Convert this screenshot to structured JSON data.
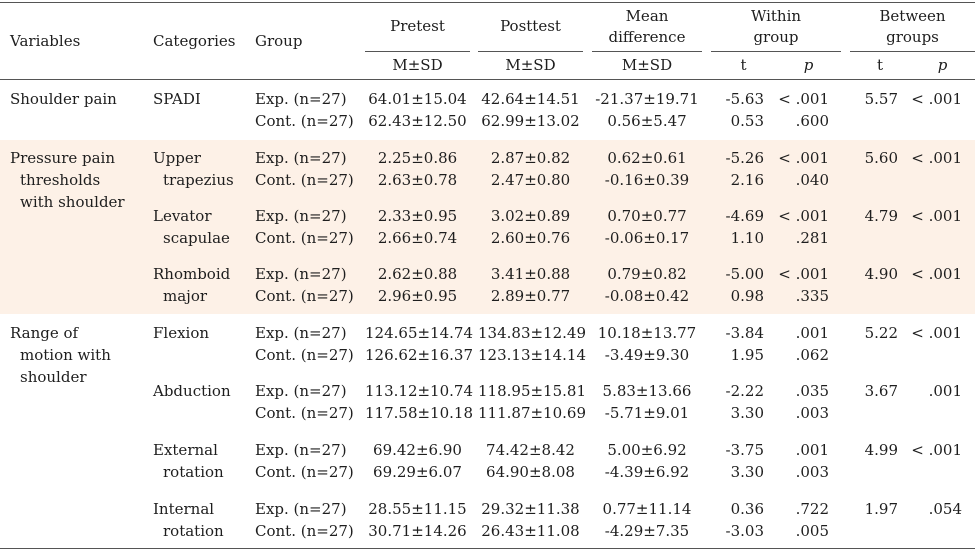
{
  "header": {
    "variables": "Variables",
    "categories": "Categories",
    "group": "Group",
    "pretest": "Pretest",
    "posttest": "Posttest",
    "mean_diff_1": "Mean",
    "mean_diff_2": "difference",
    "within_1": "Within",
    "within_2": "group",
    "between_1": "Between",
    "between_2": "groups",
    "msd": "M±SD",
    "t": "t",
    "p": "p"
  },
  "rows": [
    {
      "variable": [
        "Shoulder pain"
      ],
      "category": [
        "SPADI"
      ],
      "group": [
        "Exp. (n=27)",
        "Cont. (n=27)"
      ],
      "pretest": [
        "64.01±15.04",
        "62.43±12.50"
      ],
      "posttest": [
        "42.64±14.51",
        "62.99±13.02"
      ],
      "mean_diff": [
        "-21.37±19.71",
        "0.56±5.47"
      ],
      "within_t": [
        "-5.63",
        "0.53"
      ],
      "within_p": [
        "< .001",
        ".600"
      ],
      "between_t": "5.57",
      "between_p": "< .001"
    },
    {
      "variable": [
        "Pressure pain",
        "thresholds",
        "with shoulder"
      ],
      "category": [
        "Upper",
        "trapezius"
      ],
      "group": [
        "Exp. (n=27)",
        "Cont. (n=27)"
      ],
      "pretest": [
        "2.25±0.86",
        "2.63±0.78"
      ],
      "posttest": [
        "2.87±0.82",
        "2.47±0.80"
      ],
      "mean_diff": [
        "0.62±0.61",
        "-0.16±0.39"
      ],
      "within_t": [
        "-5.26",
        "2.16"
      ],
      "within_p": [
        "< .001",
        ".040"
      ],
      "between_t": "5.60",
      "between_p": "< .001"
    },
    {
      "variable": [],
      "category": [
        "Levator",
        "scapulae"
      ],
      "group": [
        "Exp. (n=27)",
        "Cont. (n=27)"
      ],
      "pretest": [
        "2.33±0.95",
        "2.66±0.74"
      ],
      "posttest": [
        "3.02±0.89",
        "2.60±0.76"
      ],
      "mean_diff": [
        "0.70±0.77",
        "-0.06±0.17"
      ],
      "within_t": [
        "-4.69",
        "1.10"
      ],
      "within_p": [
        "< .001",
        ".281"
      ],
      "between_t": "4.79",
      "between_p": "< .001"
    },
    {
      "variable": [],
      "category": [
        "Rhomboid",
        "major"
      ],
      "group": [
        "Exp. (n=27)",
        "Cont. (n=27)"
      ],
      "pretest": [
        "2.62±0.88",
        "2.96±0.95"
      ],
      "posttest": [
        "3.41±0.88",
        "2.89±0.77"
      ],
      "mean_diff": [
        "0.79±0.82",
        "-0.08±0.42"
      ],
      "within_t": [
        "-5.00",
        "0.98"
      ],
      "within_p": [
        "< .001",
        ".335"
      ],
      "between_t": "4.90",
      "between_p": "< .001"
    },
    {
      "variable": [
        "Range of",
        "motion with",
        "shoulder"
      ],
      "category": [
        "Flexion"
      ],
      "group": [
        "Exp. (n=27)",
        "Cont. (n=27)"
      ],
      "pretest": [
        "124.65±14.74",
        "126.62±16.37"
      ],
      "posttest": [
        "134.83±12.49",
        "123.13±14.14"
      ],
      "mean_diff": [
        "10.18±13.77",
        "-3.49±9.30"
      ],
      "within_t": [
        "-3.84",
        "1.95"
      ],
      "within_p": [
        ".001",
        ".062"
      ],
      "between_t": "5.22",
      "between_p": "< .001"
    },
    {
      "variable": [],
      "category": [
        "Abduction"
      ],
      "group": [
        "Exp. (n=27)",
        "Cont. (n=27)"
      ],
      "pretest": [
        "113.12±10.74",
        "117.58±10.18"
      ],
      "posttest": [
        "118.95±15.81",
        "111.87±10.69"
      ],
      "mean_diff": [
        "5.83±13.66",
        "-5.71±9.01"
      ],
      "within_t": [
        "-2.22",
        "3.30"
      ],
      "within_p": [
        ".035",
        ".003"
      ],
      "between_t": "3.67",
      "between_p": ".001"
    },
    {
      "variable": [],
      "category": [
        "External",
        "rotation"
      ],
      "group": [
        "Exp. (n=27)",
        "Cont. (n=27)"
      ],
      "pretest": [
        "69.42±6.90",
        "69.29±6.07"
      ],
      "posttest": [
        "74.42±8.42",
        "64.90±8.08"
      ],
      "mean_diff": [
        "5.00±6.92",
        "-4.39±6.92"
      ],
      "within_t": [
        "-3.75",
        "3.30"
      ],
      "within_p": [
        ".001",
        ".003"
      ],
      "between_t": "4.99",
      "between_p": "< .001"
    },
    {
      "variable": [],
      "category": [
        "Internal",
        "rotation"
      ],
      "group": [
        "Exp. (n=27)",
        "Cont. (n=27)"
      ],
      "pretest": [
        "28.55±11.15",
        "30.71±14.26"
      ],
      "posttest": [
        "29.32±11.38",
        "26.43±11.08"
      ],
      "mean_diff": [
        "0.77±11.14",
        "-4.29±7.35"
      ],
      "within_t": [
        "0.36",
        "-3.03"
      ],
      "within_p": [
        ".722",
        ".005"
      ],
      "between_t": "1.97",
      "between_p": ".054"
    }
  ]
}
